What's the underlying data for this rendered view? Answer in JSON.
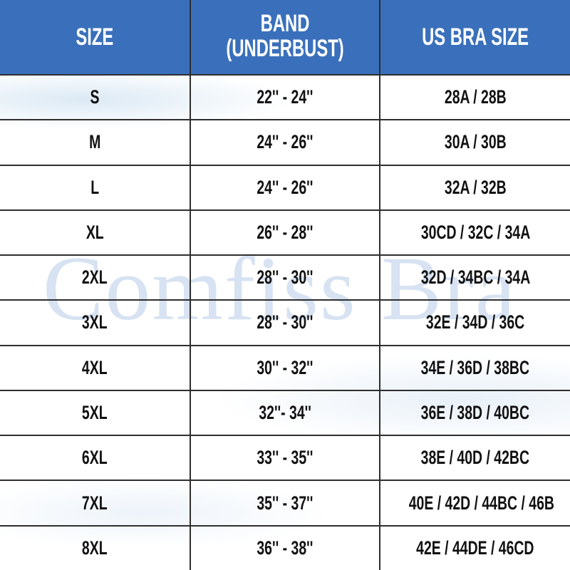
{
  "watermark": "Comfiss Bra",
  "colors": {
    "header_bg": "#3a70bb",
    "header_text": "#ffffff",
    "grid": "#2e2e2e"
  },
  "headers": {
    "size": "SIZE",
    "band_line1": "BAND",
    "band_line2": "(UNDERBUST)",
    "us": "US BRA SIZE"
  },
  "rows": [
    {
      "size": "S",
      "band": "22'' - 24''",
      "us": "28A / 28B"
    },
    {
      "size": "M",
      "band": "24'' - 26''",
      "us": "30A / 30B"
    },
    {
      "size": "L",
      "band": "24'' - 26''",
      "us": "32A / 32B"
    },
    {
      "size": "XL",
      "band": "26'' - 28''",
      "us": "30CD / 32C / 34A"
    },
    {
      "size": "2XL",
      "band": "28'' - 30''",
      "us": "32D / 34BC / 34A"
    },
    {
      "size": "3XL",
      "band": "28'' - 30''",
      "us": "32E / 34D / 36C"
    },
    {
      "size": "4XL",
      "band": "30'' - 32''",
      "us": "34E / 36D / 38BC"
    },
    {
      "size": "5XL",
      "band": "32''- 34''",
      "us": "36E / 38D / 40BC"
    },
    {
      "size": "6XL",
      "band": "33'' - 35''",
      "us": "38E / 40D / 42BC"
    },
    {
      "size": "7XL",
      "band": "35'' - 37''",
      "us": "40E / 42D / 44BC / 46B"
    },
    {
      "size": "8XL",
      "band": "36'' - 38''",
      "us": "42E / 44DE / 46CD"
    }
  ]
}
